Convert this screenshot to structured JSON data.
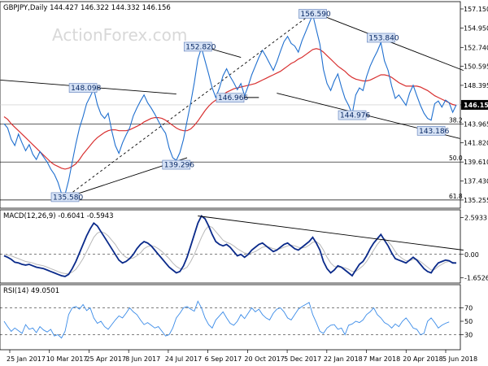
{
  "chart_data": {
    "type": "line",
    "header": "GBPJPY,Daily  144.427 146.322 144.332 146.156",
    "watermark": "ActionForex.com",
    "x_labels": [
      "25 Jan 2017",
      "10 Mar 2017",
      "25 Apr 2017",
      "8 Jun 2017",
      "24 Jul 2017",
      "6 Sep 2017",
      "20 Oct 2017",
      "5 Dec 2017",
      "22 Jan 2018",
      "7 Mar 2018",
      "20 Apr 2018",
      "5 Jun 2018"
    ],
    "price": {
      "y_ticks": [
        "157.150",
        "154.950",
        "152.740",
        "150.595",
        "148.395",
        "146.156",
        "143.965",
        "141.820",
        "139.610",
        "137.430",
        "135.255"
      ],
      "ylim": [
        134.5,
        157.8
      ],
      "last_price": "146.156",
      "series_close": [
        144.0,
        143.5,
        142.2,
        141.5,
        142.8,
        141.8,
        140.9,
        141.6,
        140.5,
        139.9,
        140.8,
        140.2,
        139.6,
        138.8,
        138.2,
        137.3,
        136.0,
        135.9,
        137.5,
        139.6,
        141.7,
        143.5,
        144.8,
        146.3,
        147.1,
        148.0,
        146.2,
        145.1,
        144.6,
        145.2,
        143.2,
        141.5,
        140.6,
        141.8,
        142.7,
        143.5,
        144.9,
        145.8,
        146.6,
        147.3,
        146.4,
        145.8,
        145.1,
        144.3,
        143.5,
        142.9,
        141.2,
        140.1,
        139.8,
        140.7,
        142.2,
        144.3,
        146.4,
        148.7,
        151.4,
        152.7,
        151.2,
        149.7,
        148.1,
        147.0,
        148.1,
        149.5,
        150.3,
        149.4,
        148.7,
        147.9,
        148.6,
        147.2,
        148.3,
        149.6,
        150.6,
        151.6,
        152.4,
        151.7,
        150.9,
        150.1,
        151.1,
        152.3,
        153.4,
        154.0,
        153.2,
        152.9,
        152.2,
        153.5,
        154.5,
        155.5,
        156.5,
        154.8,
        153.1,
        150.2,
        148.6,
        147.8,
        148.9,
        149.7,
        148.2,
        146.9,
        146.1,
        145.1,
        147.3,
        148.1,
        147.8,
        149.4,
        150.6,
        151.5,
        152.3,
        153.3,
        151.2,
        150.1,
        148.3,
        146.9,
        147.3,
        146.7,
        146.1,
        147.5,
        148.4,
        147.2,
        146.1,
        145.2,
        144.6,
        144.4,
        146.3,
        146.6,
        145.9,
        146.7,
        146.4,
        145.3,
        146.156
      ],
      "series_ma": [
        144.8,
        144.5,
        144.0,
        143.6,
        143.2,
        142.8,
        142.4,
        142.0,
        141.6,
        141.2,
        140.8,
        140.4,
        140.0,
        139.6,
        139.3,
        139.1,
        138.9,
        138.8,
        138.9,
        139.1,
        139.4,
        139.9,
        140.5,
        141.0,
        141.5,
        142.0,
        142.4,
        142.7,
        143.0,
        143.2,
        143.3,
        143.3,
        143.2,
        143.2,
        143.2,
        143.3,
        143.5,
        143.7,
        143.9,
        144.2,
        144.4,
        144.6,
        144.7,
        144.7,
        144.6,
        144.4,
        144.1,
        143.8,
        143.5,
        143.3,
        143.2,
        143.2,
        143.4,
        143.8,
        144.3,
        144.9,
        145.5,
        146.0,
        146.4,
        146.7,
        147.0,
        147.3,
        147.6,
        147.8,
        148.0,
        148.1,
        148.2,
        148.3,
        148.4,
        148.5,
        148.6,
        148.8,
        149.0,
        149.2,
        149.4,
        149.6,
        149.8,
        150.0,
        150.3,
        150.6,
        150.9,
        151.1,
        151.4,
        151.6,
        151.9,
        152.2,
        152.5,
        152.6,
        152.5,
        152.2,
        151.8,
        151.4,
        151.0,
        150.6,
        150.3,
        150.0,
        149.6,
        149.3,
        149.1,
        149.0,
        148.9,
        148.9,
        149.0,
        149.2,
        149.4,
        149.6,
        149.6,
        149.5,
        149.3,
        149.0,
        148.7,
        148.5,
        148.3,
        148.3,
        148.3,
        148.3,
        148.2,
        148.0,
        147.8,
        147.5,
        147.2,
        147.0,
        146.8,
        146.6,
        146.4,
        146.2,
        146.1
      ],
      "annotations": [
        {
          "label": "148.098",
          "x": 22,
          "y": 148.098
        },
        {
          "label": "135.580",
          "x": 17,
          "y": 135.58
        },
        {
          "label": "152.820",
          "x": 54,
          "y": 152.82
        },
        {
          "label": "139.296",
          "x": 48,
          "y": 139.296
        },
        {
          "label": "146.966",
          "x": 63,
          "y": 146.966
        },
        {
          "label": "156.590",
          "x": 86,
          "y": 156.59
        },
        {
          "label": "144.976",
          "x": 97,
          "y": 144.976
        },
        {
          "label": "153.840",
          "x": 105,
          "y": 153.84
        },
        {
          "label": "143.186",
          "x": 119,
          "y": 143.186
        }
      ],
      "fib_levels": [
        {
          "label": "38.2",
          "value": 143.965
        },
        {
          "label": "50.0",
          "value": 139.61
        },
        {
          "label": "61.8",
          "value": 135.255
        }
      ],
      "trend_lines": [
        {
          "x1": -1,
          "y1": 149.0,
          "x2": 48,
          "y2": 147.4
        },
        {
          "x1": 17,
          "y1": 135.5,
          "x2": 51,
          "y2": 140.1
        },
        {
          "x1": 17,
          "y1": 135.5,
          "x2": 86,
          "y2": 156.7
        },
        {
          "x1": 54,
          "y1": 153.0,
          "x2": 66,
          "y2": 151.6
        },
        {
          "x1": 86,
          "y1": 156.8,
          "x2": 128,
          "y2": 150.1
        },
        {
          "x1": 76,
          "y1": 147.5,
          "x2": 127,
          "y2": 142.3
        },
        {
          "x1": 63,
          "y1": 147.0,
          "x2": 71,
          "y2": 147.0
        }
      ]
    },
    "macd": {
      "label": "MACD(12,26,9) -0.6041 -0.5943",
      "y_ticks": [
        "2.5933",
        "0.00",
        "-1.6526"
      ],
      "ylim": [
        -1.9,
        2.9
      ],
      "series_macd": [
        -0.1,
        -0.2,
        -0.35,
        -0.55,
        -0.6,
        -0.7,
        -0.75,
        -0.7,
        -0.8,
        -0.9,
        -0.95,
        -1.0,
        -1.1,
        -1.2,
        -1.3,
        -1.4,
        -1.5,
        -1.55,
        -1.4,
        -1.0,
        -0.5,
        0.1,
        0.7,
        1.3,
        1.8,
        2.2,
        2.0,
        1.6,
        1.2,
        0.8,
        0.4,
        0.0,
        -0.4,
        -0.6,
        -0.5,
        -0.3,
        0.0,
        0.4,
        0.7,
        0.9,
        0.8,
        0.6,
        0.3,
        0.0,
        -0.3,
        -0.6,
        -0.9,
        -1.1,
        -1.3,
        -1.2,
        -0.8,
        -0.2,
        0.6,
        1.4,
        2.2,
        2.7,
        2.5,
        2.0,
        1.4,
        0.9,
        0.7,
        0.6,
        0.7,
        0.5,
        0.2,
        -0.1,
        0.0,
        -0.2,
        0.0,
        0.3,
        0.5,
        0.7,
        0.8,
        0.6,
        0.4,
        0.2,
        0.3,
        0.5,
        0.7,
        0.8,
        0.6,
        0.4,
        0.3,
        0.5,
        0.7,
        0.9,
        1.2,
        0.8,
        0.3,
        -0.5,
        -1.0,
        -1.3,
        -1.1,
        -0.8,
        -0.9,
        -1.1,
        -1.3,
        -1.5,
        -1.1,
        -0.7,
        -0.5,
        -0.1,
        0.4,
        0.8,
        1.1,
        1.4,
        1.0,
        0.6,
        0.1,
        -0.3,
        -0.4,
        -0.5,
        -0.6,
        -0.4,
        -0.2,
        -0.4,
        -0.7,
        -1.0,
        -1.2,
        -1.3,
        -0.9,
        -0.6,
        -0.5,
        -0.4,
        -0.45,
        -0.6,
        -0.6
      ],
      "series_signal": [
        0.0,
        -0.05,
        -0.1,
        -0.2,
        -0.3,
        -0.4,
        -0.5,
        -0.55,
        -0.6,
        -0.7,
        -0.75,
        -0.8,
        -0.9,
        -1.0,
        -1.1,
        -1.2,
        -1.3,
        -1.35,
        -1.35,
        -1.25,
        -1.05,
        -0.7,
        -0.3,
        0.2,
        0.7,
        1.2,
        1.5,
        1.6,
        1.5,
        1.3,
        1.0,
        0.7,
        0.3,
        0.0,
        -0.2,
        -0.3,
        -0.25,
        -0.1,
        0.1,
        0.4,
        0.55,
        0.6,
        0.55,
        0.4,
        0.2,
        -0.05,
        -0.3,
        -0.6,
        -0.85,
        -1.0,
        -1.05,
        -0.9,
        -0.5,
        0.0,
        0.6,
        1.2,
        1.7,
        2.0,
        1.9,
        1.6,
        1.3,
        1.0,
        0.85,
        0.75,
        0.6,
        0.4,
        0.25,
        0.1,
        0.05,
        0.1,
        0.2,
        0.35,
        0.5,
        0.55,
        0.5,
        0.4,
        0.35,
        0.4,
        0.5,
        0.6,
        0.65,
        0.6,
        0.5,
        0.45,
        0.5,
        0.65,
        0.85,
        0.9,
        0.7,
        0.3,
        -0.2,
        -0.6,
        -0.85,
        -0.9,
        -0.9,
        -0.95,
        -1.05,
        -1.2,
        -1.2,
        -1.0,
        -0.8,
        -0.5,
        -0.1,
        0.3,
        0.7,
        1.0,
        1.1,
        0.9,
        0.6,
        0.2,
        -0.1,
        -0.3,
        -0.45,
        -0.45,
        -0.35,
        -0.35,
        -0.5,
        -0.7,
        -0.9,
        -1.1,
        -1.05,
        -0.85,
        -0.7,
        -0.55,
        -0.5,
        -0.55,
        -0.5943
      ],
      "trend_line": {
        "x1": 54,
        "y1": 2.7,
        "x2": 128,
        "y2": 0.3
      }
    },
    "rsi": {
      "label": "RSI(14) 49.0501",
      "y_ticks": [
        "70",
        "50",
        "30"
      ],
      "ylim": [
        0,
        100
      ],
      "series": [
        50,
        42,
        35,
        40,
        36,
        32,
        45,
        38,
        40,
        33,
        42,
        37,
        34,
        38,
        28,
        30,
        25,
        35,
        60,
        70,
        72,
        68,
        75,
        66,
        70,
        55,
        47,
        50,
        42,
        38,
        45,
        52,
        58,
        55,
        62,
        70,
        64,
        60,
        52,
        45,
        48,
        44,
        40,
        42,
        35,
        28,
        30,
        40,
        55,
        62,
        70,
        72,
        68,
        65,
        80,
        70,
        55,
        45,
        40,
        52,
        58,
        64,
        55,
        47,
        44,
        50,
        60,
        54,
        62,
        70,
        64,
        68,
        60,
        55,
        52,
        62,
        68,
        70,
        64,
        55,
        52,
        60,
        68,
        72,
        75,
        78,
        60,
        48,
        35,
        32,
        40,
        44,
        45,
        38,
        40,
        30,
        44,
        46,
        50,
        48,
        52,
        60,
        64,
        70,
        60,
        55,
        48,
        45,
        40,
        46,
        42,
        50,
        55,
        48,
        40,
        38,
        30,
        32,
        50,
        55,
        48,
        40,
        44,
        47,
        49.0501
      ]
    },
    "colors": {
      "price_line": "#1f6fcf",
      "ma_line": "#d83030",
      "macd_line": "#0a2a8a",
      "signal_line": "#b8b8b8",
      "rsi_line": "#3a8be8",
      "trend_line": "#000000",
      "annotation_box": "#d6e2f5",
      "price_highlight": "#000000"
    }
  }
}
